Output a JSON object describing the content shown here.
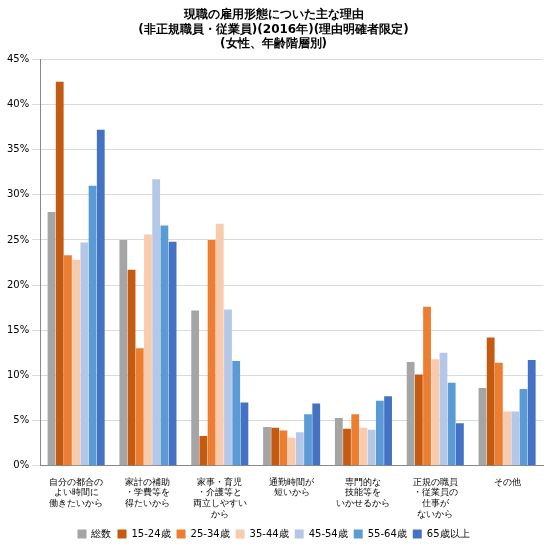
{
  "chart_data": {
    "type": "bar",
    "title": [
      "現職の雇用形態についた主な理由",
      "(非正規職員・従業員)(2016年)(理由明確者限定)",
      "(女性、年齢階層別)"
    ],
    "categories": [
      [
        "自分の都合の",
        "よい時間に",
        "働きたいから"
      ],
      [
        "家計の補助",
        "・学費等を",
        "得たいから"
      ],
      [
        "家事・育児",
        "・介護等と",
        "両立しやすい",
        "から"
      ],
      [
        "通勤時間が",
        "短いから"
      ],
      [
        "専門的な",
        "技能等を",
        "いかせるから"
      ],
      [
        "正規の職員",
        "・従業員の",
        "仕事が",
        "ないから"
      ],
      [
        "その他"
      ]
    ],
    "series": [
      {
        "name": "総数",
        "color": "#a5a5a5",
        "values": [
          28.1,
          25.0,
          17.2,
          4.3,
          5.3,
          11.5,
          8.6
        ]
      },
      {
        "name": "15-24歳",
        "color": "#c55a11",
        "values": [
          42.5,
          21.7,
          3.3,
          4.2,
          4.1,
          10.1,
          14.2
        ]
      },
      {
        "name": "25-34歳",
        "color": "#ed7d31",
        "values": [
          23.3,
          13.0,
          25.0,
          3.9,
          5.7,
          17.6,
          11.4
        ]
      },
      {
        "name": "35-44歳",
        "color": "#f8cbad",
        "values": [
          22.8,
          25.6,
          26.8,
          3.1,
          4.2,
          11.8,
          6.0
        ]
      },
      {
        "name": "45-54歳",
        "color": "#b4c7e7",
        "values": [
          24.7,
          31.7,
          17.3,
          3.7,
          4.0,
          12.5,
          6.0
        ]
      },
      {
        "name": "55-64歳",
        "color": "#5b9bd5",
        "values": [
          31.0,
          26.6,
          11.6,
          5.7,
          7.2,
          9.2,
          8.5
        ]
      },
      {
        "name": "65歳以上",
        "color": "#4472c4",
        "values": [
          37.2,
          24.8,
          7.0,
          6.9,
          7.7,
          4.7,
          11.7
        ]
      }
    ],
    "ylim": [
      0,
      45
    ],
    "yticks": [
      {
        "value": 0,
        "label": "0%"
      },
      {
        "value": 5,
        "label": "5%"
      },
      {
        "value": 10,
        "label": "10%"
      },
      {
        "value": 15,
        "label": "15%"
      },
      {
        "value": 20,
        "label": "20%"
      },
      {
        "value": 25,
        "label": "25%"
      },
      {
        "value": 30,
        "label": "30%"
      },
      {
        "value": 35,
        "label": "35%"
      },
      {
        "value": 40,
        "label": "40%"
      },
      {
        "value": 45,
        "label": "45%"
      }
    ],
    "grid": true,
    "legend": "bottom"
  }
}
